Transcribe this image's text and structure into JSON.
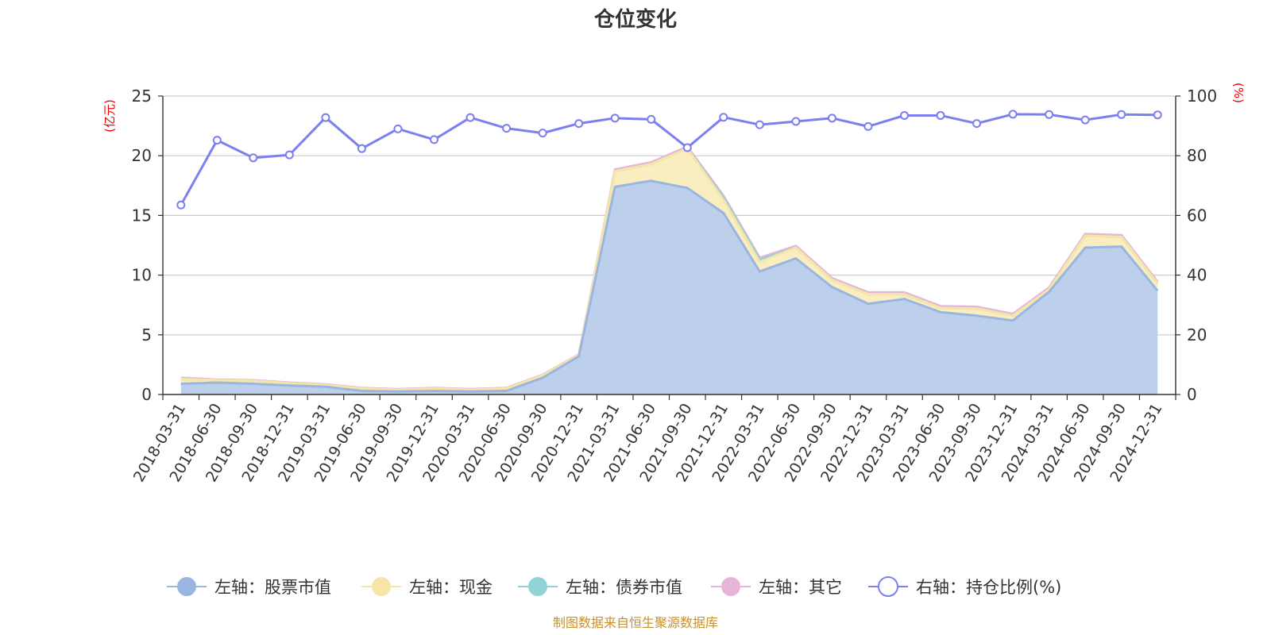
{
  "chart_data": {
    "type": "area",
    "title": "仓位变化",
    "y_left": {
      "unit": "(亿元)",
      "min": 0,
      "max": 25,
      "ticks": [
        0,
        5,
        10,
        15,
        20,
        25
      ]
    },
    "y_right": {
      "unit": "(%)",
      "min": 0,
      "max": 100,
      "ticks": [
        0,
        20,
        40,
        60,
        80,
        100
      ]
    },
    "categories": [
      "2018-03-31",
      "2018-06-30",
      "2018-09-30",
      "2018-12-31",
      "2019-03-31",
      "2019-06-30",
      "2019-09-30",
      "2019-12-31",
      "2020-03-31",
      "2020-06-30",
      "2020-09-30",
      "2020-12-31",
      "2021-03-31",
      "2021-06-30",
      "2021-09-30",
      "2021-12-31",
      "2022-03-31",
      "2022-06-30",
      "2022-09-30",
      "2022-12-31",
      "2023-03-31",
      "2023-06-30",
      "2023-09-30",
      "2023-12-31",
      "2024-03-31",
      "2024-06-30",
      "2024-09-30",
      "2024-12-31"
    ],
    "series": [
      {
        "name": "左轴：股票市值",
        "axis": "left",
        "color": "#9ab6e0",
        "fill": "#b8cdea",
        "values": [
          0.9,
          1.0,
          0.9,
          0.75,
          0.65,
          0.3,
          0.25,
          0.3,
          0.25,
          0.3,
          1.4,
          3.2,
          17.4,
          17.9,
          17.3,
          15.2,
          10.3,
          11.4,
          9.0,
          7.6,
          8.0,
          6.9,
          6.6,
          6.2,
          8.6,
          12.3,
          12.4,
          8.7
        ]
      },
      {
        "name": "左轴：现金",
        "axis": "left",
        "color": "#f5e6a8",
        "fill": "#faedbd",
        "values": [
          0.4,
          0.2,
          0.25,
          0.2,
          0.15,
          0.2,
          0.15,
          0.2,
          0.15,
          0.2,
          0.2,
          0.1,
          1.3,
          1.4,
          3.3,
          1.1,
          0.8,
          0.9,
          0.6,
          0.8,
          0.4,
          0.35,
          0.6,
          0.4,
          0.2,
          1.0,
          0.8,
          0.6
        ]
      },
      {
        "name": "左轴：债券市值",
        "axis": "left",
        "color": "#8fd3d6",
        "fill": "#bde6e6",
        "values": [
          0,
          0,
          0,
          0,
          0,
          0,
          0,
          0,
          0,
          0,
          0,
          0,
          0,
          0,
          0,
          0.2,
          0.2,
          0,
          0,
          0,
          0,
          0,
          0,
          0,
          0,
          0,
          0,
          0
        ]
      },
      {
        "name": "左轴：其它",
        "axis": "left",
        "color": "#e8b4d8",
        "fill": "#f0c8e3",
        "values": [
          0.1,
          0.05,
          0.05,
          0.05,
          0.05,
          0.05,
          0.05,
          0.05,
          0.05,
          0.05,
          0.05,
          0.05,
          0.15,
          0.15,
          0.15,
          0.15,
          0.15,
          0.15,
          0.15,
          0.15,
          0.15,
          0.15,
          0.15,
          0.15,
          0.15,
          0.15,
          0.15,
          0.15
        ]
      },
      {
        "name": "右轴：持仓比例(%)",
        "axis": "right",
        "color": "#7b7ff0",
        "values": [
          63.5,
          85.2,
          79.3,
          80.3,
          92.8,
          82.4,
          89.0,
          85.4,
          92.8,
          89.2,
          87.6,
          90.8,
          92.6,
          92.2,
          82.7,
          92.9,
          90.4,
          91.5,
          92.6,
          89.8,
          93.5,
          93.5,
          90.8,
          93.9,
          93.8,
          92.0,
          93.8,
          93.7
        ]
      }
    ],
    "legend_position": "bottom",
    "grid": true
  },
  "footer": {
    "source": "制图数据来自恒生聚源数据库"
  }
}
